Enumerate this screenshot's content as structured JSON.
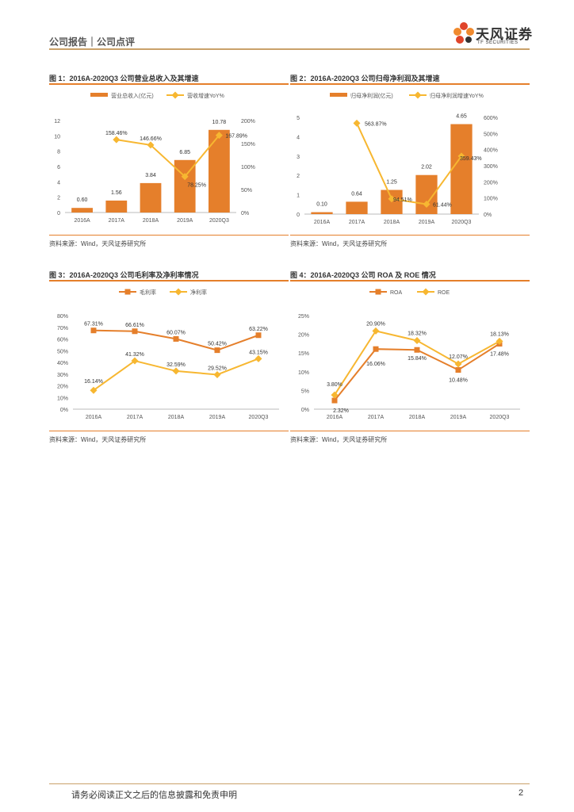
{
  "header": {
    "title": "公司报告｜公司点评"
  },
  "logo": {
    "cn": "天风证券",
    "en": "TF SECURITIES"
  },
  "footer": {
    "disclaimer": "请务必阅读正文之后的信息披露和免责申明",
    "page": "2"
  },
  "colors": {
    "orange": "#e57f2b",
    "yellow": "#f7b731",
    "accent_line": "#c9a16a"
  },
  "figures": [
    {
      "title": "图 1：2016A-2020Q3 公司营业总收入及其增速",
      "source": "资料来源：Wind，天风证券研究所"
    },
    {
      "title": "图 2：2016A-2020Q3 公司归母净利润及其增速",
      "source": "资料来源：Wind，天风证券研究所"
    },
    {
      "title": "图 3：2016A-2020Q3 公司毛利率及净利率情况",
      "source": "资料来源：Wind，天风证券研究所"
    },
    {
      "title": "图 4：2016A-2020Q3 公司 ROA 及 ROE 情况",
      "source": "资料来源：Wind，天风证券研究所"
    }
  ],
  "chart_data": [
    {
      "type": "bar",
      "categories": [
        "2016A",
        "2017A",
        "2018A",
        "2019A",
        "2020Q3"
      ],
      "series": [
        {
          "name": "营业总收入(亿元)",
          "kind": "bar",
          "axis": "left",
          "values": [
            0.6,
            1.56,
            3.84,
            6.85,
            10.78
          ],
          "labels": [
            "0.60",
            "1.56",
            "3.84",
            "6.85",
            "10.78"
          ]
        },
        {
          "name": "营收增速YoY%",
          "kind": "line",
          "axis": "right",
          "values": [
            null,
            158.46,
            146.66,
            78.25,
            167.89
          ],
          "labels": [
            "",
            "158.46%",
            "146.66%",
            "78.25%",
            "167.89%"
          ]
        }
      ],
      "ylim": [
        0,
        12
      ],
      "yticks": [
        "0",
        "2",
        "4",
        "6",
        "8",
        "10",
        "12"
      ],
      "y2lim": [
        0,
        200
      ],
      "y2ticks": [
        "0%",
        "50%",
        "100%",
        "150%",
        "200%"
      ],
      "legend": "top"
    },
    {
      "type": "bar",
      "categories": [
        "2016A",
        "2017A",
        "2018A",
        "2019A",
        "2020Q3"
      ],
      "series": [
        {
          "name": "归母净利润(亿元)",
          "kind": "bar",
          "axis": "left",
          "values": [
            0.1,
            0.64,
            1.25,
            2.02,
            4.65
          ],
          "labels": [
            "0.10",
            "0.64",
            "1.25",
            "2.02",
            "4.65"
          ]
        },
        {
          "name": "归母净利润增速YoY%",
          "kind": "line",
          "axis": "right",
          "values": [
            null,
            563.87,
            94.51,
            61.44,
            359.43
          ],
          "labels": [
            "",
            "563.87%",
            "94.51%",
            "61.44%",
            "359.43%"
          ]
        }
      ],
      "ylim": [
        0,
        5
      ],
      "yticks": [
        "0",
        "1",
        "2",
        "3",
        "4",
        "5"
      ],
      "y2lim": [
        0,
        600
      ],
      "y2ticks": [
        "0%",
        "100%",
        "200%",
        "300%",
        "400%",
        "500%",
        "600%"
      ],
      "legend": "top"
    },
    {
      "type": "line",
      "categories": [
        "2016A",
        "2017A",
        "2018A",
        "2019A",
        "2020Q3"
      ],
      "series": [
        {
          "name": "毛利率",
          "kind": "line",
          "marker": "square",
          "values": [
            67.31,
            66.61,
            60.07,
            50.42,
            63.22
          ],
          "labels": [
            "67.31%",
            "66.61%",
            "60.07%",
            "50.42%",
            "63.22%"
          ]
        },
        {
          "name": "净利率",
          "kind": "line",
          "marker": "diamond",
          "values": [
            16.14,
            41.32,
            32.59,
            29.52,
            43.15
          ],
          "labels": [
            "16.14%",
            "41.32%",
            "32.59%",
            "29.52%",
            "43.15%"
          ]
        }
      ],
      "ylim": [
        0,
        80
      ],
      "yticks": [
        "0%",
        "10%",
        "20%",
        "30%",
        "40%",
        "50%",
        "60%",
        "70%",
        "80%"
      ],
      "legend": "top"
    },
    {
      "type": "line",
      "categories": [
        "2016A",
        "2017A",
        "2018A",
        "2019A",
        "2020Q3"
      ],
      "series": [
        {
          "name": "ROA",
          "kind": "line",
          "marker": "square",
          "values": [
            2.32,
            16.06,
            15.84,
            10.48,
            17.48
          ],
          "labels": [
            "2.32%",
            "16.06%",
            "15.84%",
            "10.48%",
            "17.48%"
          ]
        },
        {
          "name": "ROE",
          "kind": "line",
          "marker": "diamond",
          "values": [
            3.8,
            20.9,
            18.32,
            12.07,
            18.13
          ],
          "labels": [
            "3.80%",
            "20.90%",
            "18.32%",
            "12.07%",
            "18.13%"
          ]
        }
      ],
      "ylim": [
        0,
        25
      ],
      "yticks": [
        "0%",
        "5%",
        "10%",
        "15%",
        "20%",
        "25%"
      ],
      "legend": "top"
    }
  ]
}
